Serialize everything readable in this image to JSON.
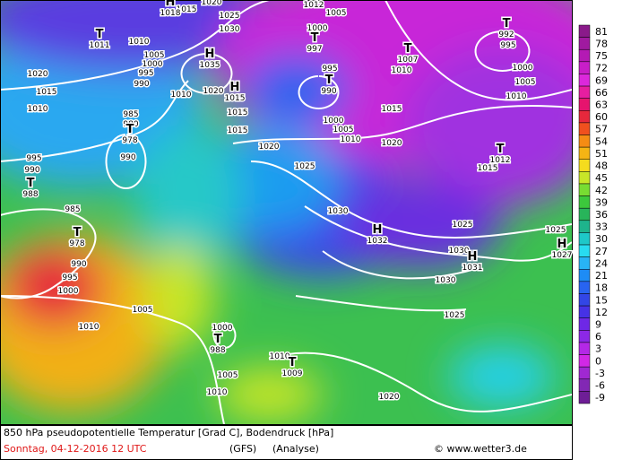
{
  "map": {
    "colorbar": {
      "ticks": [
        81,
        78,
        75,
        72,
        69,
        66,
        63,
        60,
        57,
        54,
        51,
        48,
        45,
        42,
        39,
        36,
        33,
        30,
        27,
        24,
        21,
        18,
        15,
        12,
        9,
        6,
        3,
        0,
        -3,
        -6,
        -9
      ],
      "colors": [
        "#8a1a8a",
        "#a01aa0",
        "#b41ab4",
        "#c81ec8",
        "#dc28dc",
        "#e61ea0",
        "#e6146e",
        "#e6283c",
        "#f0501e",
        "#f58c14",
        "#f5b414",
        "#f5dc1e",
        "#c8e628",
        "#78dc32",
        "#3cc83c",
        "#28b45a",
        "#1eb48c",
        "#1ec8c8",
        "#28dcf0",
        "#28b4f5",
        "#1e8cf5",
        "#2864f0",
        "#3246e6",
        "#4632e6",
        "#6e28e6",
        "#8c28e6",
        "#b428e6",
        "#d228e6",
        "#a028d2",
        "#8228b4",
        "#6e1e96"
      ]
    },
    "pressure_labels": [
      1015,
      1020,
      1025,
      1030,
      1012,
      1005,
      1010,
      1020,
      1015,
      1010,
      1005,
      1000,
      995,
      990,
      985,
      980,
      990,
      995,
      990,
      1010,
      1020,
      1015,
      1015,
      1000,
      995,
      1000,
      1005,
      1010,
      1015,
      1020,
      1020,
      1025,
      1030,
      1025,
      1030,
      1030,
      1025,
      1025,
      1000,
      1005,
      1010,
      1010,
      995,
      985,
      990,
      995,
      1000,
      1005,
      1010,
      1000,
      1005,
      1010,
      1010,
      1020,
      1015
    ],
    "centers": [
      {
        "symbol": "T",
        "value": 1011
      },
      {
        "symbol": "H",
        "value": 1018
      },
      {
        "symbol": "H",
        "value": 1035
      },
      {
        "symbol": "H",
        "value": 1015
      },
      {
        "symbol": "T",
        "value": 997
      },
      {
        "symbol": "T",
        "value": 990
      },
      {
        "symbol": "T",
        "value": 1007
      },
      {
        "symbol": "T",
        "value": 992
      },
      {
        "symbol": "T",
        "value": 978
      },
      {
        "symbol": "T",
        "value": 988
      },
      {
        "symbol": "T",
        "value": 978
      },
      {
        "symbol": "H",
        "value": 1032
      },
      {
        "symbol": "H",
        "value": 1031
      },
      {
        "symbol": "H",
        "value": 1027
      },
      {
        "symbol": "T",
        "value": 1012
      },
      {
        "symbol": "T",
        "value": 988
      },
      {
        "symbol": "T",
        "value": 1009
      }
    ],
    "footer": {
      "title": "850 hPa pseudopotentielle Temperatur [Grad C], Bodendruck [hPa]",
      "date": "Sonntag, 04-12-2016  12 UTC",
      "model": "(GFS)",
      "run": "(Analyse)",
      "credit": "© www.wetter3.de"
    }
  }
}
